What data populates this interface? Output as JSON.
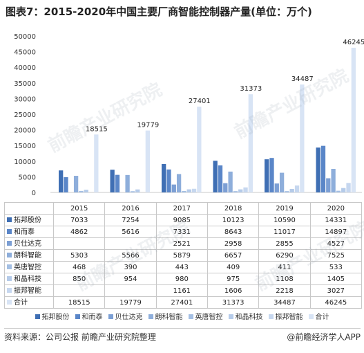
{
  "page": {
    "title": "图表7：2015-2020年中国主要厂商智能控制器产量(单位：万个)",
    "source": "资料来源：公司公报 前瞻产业研究院整理",
    "credit": "@前瞻经济学人APP",
    "watermark": "前瞻产业研究院"
  },
  "colors": {
    "拓邦股份": "#3f6fb4",
    "和而泰": "#5a86c8",
    "贝仕达克": "#7c9fd4",
    "朗科智能": "#8eaedb",
    "英唐智控": "#a4bfe3",
    "和晶科技": "#b5cbe9",
    "振邦智能": "#c6d7ef",
    "合计": "#d8e4f5"
  },
  "chart_data": {
    "type": "bar",
    "categories": [
      "2015",
      "2016",
      "2017",
      "2018",
      "2019",
      "2020"
    ],
    "ylim": [
      0,
      50000
    ],
    "yticks": [
      0,
      5000,
      10000,
      15000,
      20000,
      25000,
      30000,
      35000,
      40000,
      45000,
      50000
    ],
    "series": [
      {
        "name": "拓邦股份",
        "values": [
          7033,
          7254,
          9085,
          10123,
          10590,
          14331
        ]
      },
      {
        "name": "和而泰",
        "values": [
          4862,
          5616,
          7331,
          8643,
          11017,
          14897
        ]
      },
      {
        "name": "贝仕达克",
        "values": [
          null,
          null,
          2521,
          2958,
          2855,
          4527
        ]
      },
      {
        "name": "朗科智能",
        "values": [
          5303,
          5566,
          5879,
          6657,
          6290,
          7525
        ]
      },
      {
        "name": "英唐智控",
        "values": [
          468,
          390,
          443,
          409,
          411,
          533
        ]
      },
      {
        "name": "和晶科技",
        "values": [
          850,
          954,
          980,
          975,
          1108,
          1405
        ]
      },
      {
        "name": "振邦智能",
        "values": [
          null,
          null,
          1161,
          1606,
          2218,
          3027
        ]
      },
      {
        "name": "合计",
        "values": [
          18515,
          19779,
          27401,
          31373,
          34487,
          46245
        ]
      }
    ],
    "data_labels_series": "合计",
    "legend_position": "bottom",
    "grid": false
  }
}
